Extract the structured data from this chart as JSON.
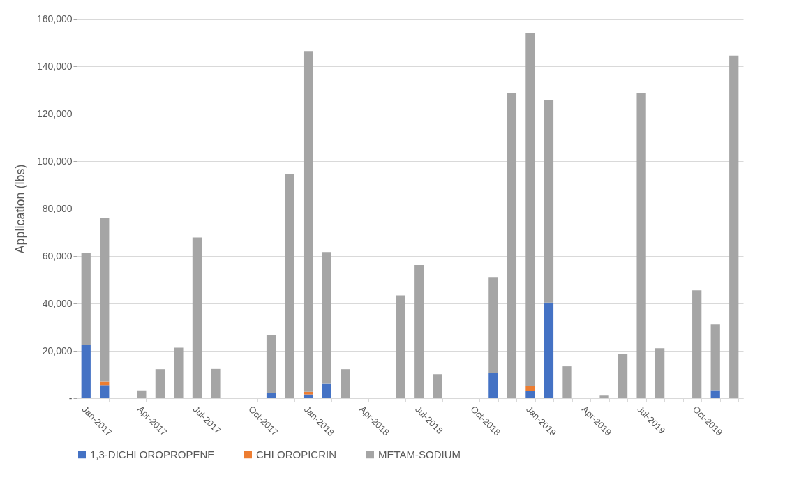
{
  "chart_data": {
    "type": "bar",
    "stacked": true,
    "ylabel": "Application (lbs)",
    "categories": [
      "Jan-2017",
      null,
      null,
      "Apr-2017",
      null,
      null,
      "Jul-2017",
      null,
      null,
      "Oct-2017",
      null,
      null,
      "Jan-2018",
      null,
      null,
      "Apr-2018",
      null,
      null,
      "Jul-2018",
      null,
      null,
      "Oct-2018",
      null,
      null,
      "Jan-2019",
      null,
      null,
      "Apr-2019",
      null,
      null,
      "Jul-2019",
      null,
      null,
      "Oct-2019",
      null,
      null
    ],
    "series": [
      {
        "name": "1,3-DICHLOROPROPENE",
        "color": "#4472c4",
        "values": [
          22500,
          5500,
          null,
          null,
          null,
          null,
          null,
          null,
          null,
          null,
          2100,
          null,
          1600,
          6300,
          null,
          null,
          null,
          null,
          null,
          null,
          null,
          null,
          10600,
          null,
          3200,
          40400,
          null,
          null,
          null,
          null,
          null,
          null,
          null,
          null,
          3400,
          null
        ]
      },
      {
        "name": "CHLOROPICRIN",
        "color": "#ed7d31",
        "values": [
          null,
          1700,
          null,
          null,
          null,
          null,
          null,
          null,
          null,
          null,
          null,
          null,
          1100,
          null,
          null,
          null,
          null,
          null,
          null,
          null,
          null,
          null,
          null,
          null,
          1900,
          null,
          null,
          null,
          null,
          null,
          null,
          null,
          null,
          null,
          null,
          null
        ]
      },
      {
        "name": "METAM-SODIUM",
        "color": "#a5a5a5",
        "values": [
          38800,
          69000,
          null,
          3300,
          12300,
          21300,
          67800,
          12400,
          null,
          null,
          24700,
          94600,
          143700,
          55400,
          12300,
          null,
          null,
          43400,
          56200,
          10200,
          null,
          null,
          40500,
          128600,
          148900,
          85200,
          13500,
          null,
          1400,
          18700,
          128600,
          21100,
          null,
          45500,
          27700,
          144500
        ]
      }
    ],
    "ylim": [
      0,
      160000
    ],
    "yticks": [
      {
        "value": 0,
        "label": "-"
      },
      {
        "value": 20000,
        "label": "20,000"
      },
      {
        "value": 40000,
        "label": "40,000"
      },
      {
        "value": 60000,
        "label": "60,000"
      },
      {
        "value": 80000,
        "label": "80,000"
      },
      {
        "value": 100000,
        "label": "100,000"
      },
      {
        "value": 120000,
        "label": "120,000"
      },
      {
        "value": 140000,
        "label": "140,000"
      },
      {
        "value": 160000,
        "label": "160,000"
      }
    ],
    "grid": "y",
    "legend": "bottom"
  }
}
